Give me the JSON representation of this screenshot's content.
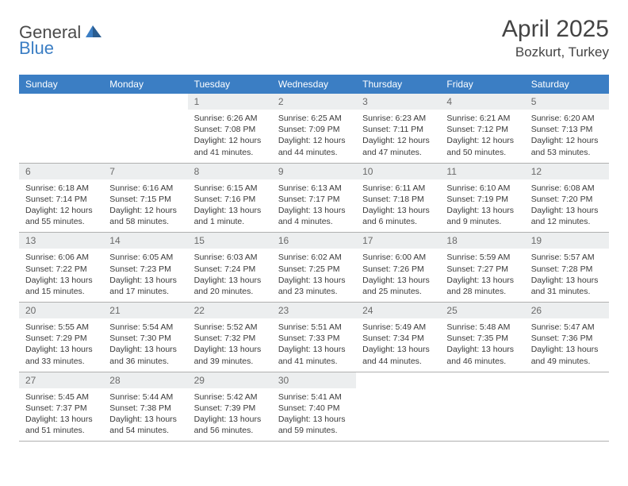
{
  "logo": {
    "text1": "General",
    "text2": "Blue"
  },
  "title": "April 2025",
  "location": "Bozkurt, Turkey",
  "colors": {
    "header_bar": "#3b7ec4",
    "header_text": "#ffffff",
    "day_num_bg": "#eceeef",
    "day_num_fg": "#6a6a6a",
    "cell_border": "#b0b0b0",
    "body_text": "#3a3a3a",
    "title_text": "#444444"
  },
  "weekdays": [
    "Sunday",
    "Monday",
    "Tuesday",
    "Wednesday",
    "Thursday",
    "Friday",
    "Saturday"
  ],
  "weeks": [
    [
      null,
      null,
      {
        "n": "1",
        "sr": "6:26 AM",
        "ss": "7:08 PM",
        "dl": "12 hours and 41 minutes."
      },
      {
        "n": "2",
        "sr": "6:25 AM",
        "ss": "7:09 PM",
        "dl": "12 hours and 44 minutes."
      },
      {
        "n": "3",
        "sr": "6:23 AM",
        "ss": "7:11 PM",
        "dl": "12 hours and 47 minutes."
      },
      {
        "n": "4",
        "sr": "6:21 AM",
        "ss": "7:12 PM",
        "dl": "12 hours and 50 minutes."
      },
      {
        "n": "5",
        "sr": "6:20 AM",
        "ss": "7:13 PM",
        "dl": "12 hours and 53 minutes."
      }
    ],
    [
      {
        "n": "6",
        "sr": "6:18 AM",
        "ss": "7:14 PM",
        "dl": "12 hours and 55 minutes."
      },
      {
        "n": "7",
        "sr": "6:16 AM",
        "ss": "7:15 PM",
        "dl": "12 hours and 58 minutes."
      },
      {
        "n": "8",
        "sr": "6:15 AM",
        "ss": "7:16 PM",
        "dl": "13 hours and 1 minute."
      },
      {
        "n": "9",
        "sr": "6:13 AM",
        "ss": "7:17 PM",
        "dl": "13 hours and 4 minutes."
      },
      {
        "n": "10",
        "sr": "6:11 AM",
        "ss": "7:18 PM",
        "dl": "13 hours and 6 minutes."
      },
      {
        "n": "11",
        "sr": "6:10 AM",
        "ss": "7:19 PM",
        "dl": "13 hours and 9 minutes."
      },
      {
        "n": "12",
        "sr": "6:08 AM",
        "ss": "7:20 PM",
        "dl": "13 hours and 12 minutes."
      }
    ],
    [
      {
        "n": "13",
        "sr": "6:06 AM",
        "ss": "7:22 PM",
        "dl": "13 hours and 15 minutes."
      },
      {
        "n": "14",
        "sr": "6:05 AM",
        "ss": "7:23 PM",
        "dl": "13 hours and 17 minutes."
      },
      {
        "n": "15",
        "sr": "6:03 AM",
        "ss": "7:24 PM",
        "dl": "13 hours and 20 minutes."
      },
      {
        "n": "16",
        "sr": "6:02 AM",
        "ss": "7:25 PM",
        "dl": "13 hours and 23 minutes."
      },
      {
        "n": "17",
        "sr": "6:00 AM",
        "ss": "7:26 PM",
        "dl": "13 hours and 25 minutes."
      },
      {
        "n": "18",
        "sr": "5:59 AM",
        "ss": "7:27 PM",
        "dl": "13 hours and 28 minutes."
      },
      {
        "n": "19",
        "sr": "5:57 AM",
        "ss": "7:28 PM",
        "dl": "13 hours and 31 minutes."
      }
    ],
    [
      {
        "n": "20",
        "sr": "5:55 AM",
        "ss": "7:29 PM",
        "dl": "13 hours and 33 minutes."
      },
      {
        "n": "21",
        "sr": "5:54 AM",
        "ss": "7:30 PM",
        "dl": "13 hours and 36 minutes."
      },
      {
        "n": "22",
        "sr": "5:52 AM",
        "ss": "7:32 PM",
        "dl": "13 hours and 39 minutes."
      },
      {
        "n": "23",
        "sr": "5:51 AM",
        "ss": "7:33 PM",
        "dl": "13 hours and 41 minutes."
      },
      {
        "n": "24",
        "sr": "5:49 AM",
        "ss": "7:34 PM",
        "dl": "13 hours and 44 minutes."
      },
      {
        "n": "25",
        "sr": "5:48 AM",
        "ss": "7:35 PM",
        "dl": "13 hours and 46 minutes."
      },
      {
        "n": "26",
        "sr": "5:47 AM",
        "ss": "7:36 PM",
        "dl": "13 hours and 49 minutes."
      }
    ],
    [
      {
        "n": "27",
        "sr": "5:45 AM",
        "ss": "7:37 PM",
        "dl": "13 hours and 51 minutes."
      },
      {
        "n": "28",
        "sr": "5:44 AM",
        "ss": "7:38 PM",
        "dl": "13 hours and 54 minutes."
      },
      {
        "n": "29",
        "sr": "5:42 AM",
        "ss": "7:39 PM",
        "dl": "13 hours and 56 minutes."
      },
      {
        "n": "30",
        "sr": "5:41 AM",
        "ss": "7:40 PM",
        "dl": "13 hours and 59 minutes."
      },
      null,
      null,
      null
    ]
  ],
  "labels": {
    "sunrise": "Sunrise:",
    "sunset": "Sunset:",
    "daylight": "Daylight:"
  }
}
